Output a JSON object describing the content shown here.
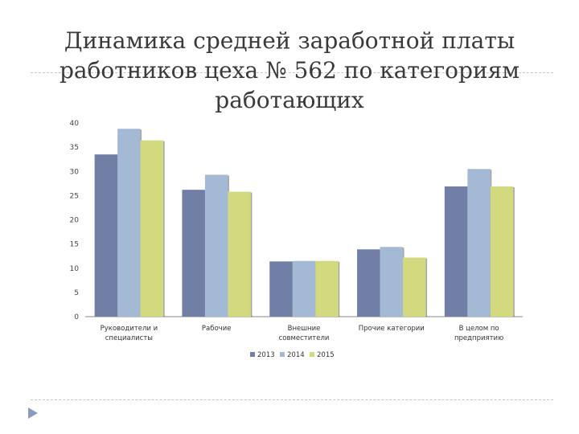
{
  "slide": {
    "title_lines": [
      "Динамика средней заработной платы",
      "работников цеха № 562 по категориям",
      "работающих"
    ]
  },
  "chart_data": {
    "type": "bar",
    "title": "",
    "xlabel": "",
    "ylabel": "",
    "ylim": [
      0,
      40
    ],
    "yticks": [
      0,
      5,
      10,
      15,
      20,
      25,
      30,
      35,
      40
    ],
    "grid": false,
    "legend_position": "bottom",
    "categories": [
      [
        "Руководители и",
        "специалисты"
      ],
      [
        "Рабочие"
      ],
      [
        "Внешние",
        "совместители"
      ],
      [
        "Прочие категории"
      ],
      [
        "В целом по",
        "предприятию"
      ]
    ],
    "series": [
      {
        "name": "2013",
        "color": "#717fa6",
        "values": [
          33.5,
          26.2,
          11.4,
          13.9,
          26.9
        ]
      },
      {
        "name": "2014",
        "color": "#a4bad4",
        "values": [
          38.8,
          29.3,
          11.5,
          14.4,
          30.5
        ]
      },
      {
        "name": "2015",
        "color": "#d2d97f",
        "values": [
          36.4,
          25.8,
          11.5,
          12.2,
          26.9
        ]
      }
    ]
  }
}
